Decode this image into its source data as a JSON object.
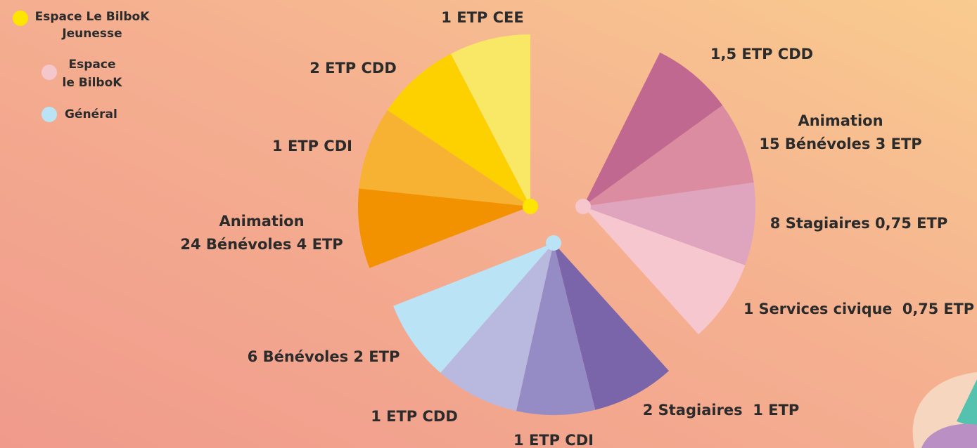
{
  "legend": [
    {
      "lines": [
        "Espace Le BilboK",
        "Jeunesse"
      ]
    },
    {
      "lines": [
        "Espace",
        "le BilboK"
      ]
    },
    {
      "lines": [
        "Général"
      ]
    }
  ],
  "groups": [
    {
      "labels": [
        [
          "1 ETP CEE"
        ],
        [
          "2 ETP CDD"
        ],
        [
          "1 ETP CDI"
        ],
        [
          "Animation",
          "24 Bénévoles 4 ETP"
        ]
      ]
    },
    {
      "labels": [
        [
          "1,5 ETP CDD"
        ],
        [
          "Animation",
          "15 Bénévoles 3 ETP"
        ],
        [
          "8 Stagiaires 0,75 ETP"
        ],
        [
          "1 Services civique  0,75 ETP"
        ]
      ]
    },
    {
      "labels": [
        [
          "2 Stagiaires  1 ETP"
        ],
        [
          "1 ETP CDI"
        ],
        [
          "1 ETP CDD"
        ],
        [
          "6 Bénévoles 2 ETP"
        ]
      ]
    }
  ]
}
